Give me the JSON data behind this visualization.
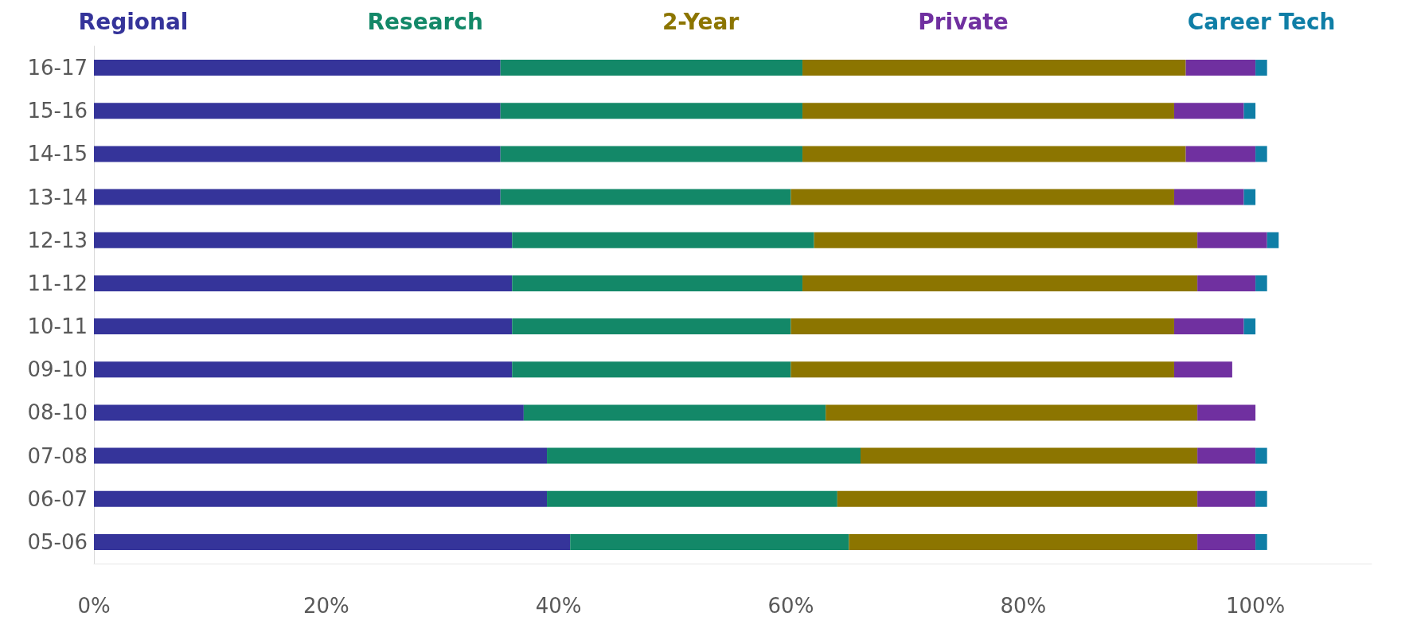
{
  "chart_data": {
    "type": "bar",
    "orientation": "horizontal",
    "stacked": true,
    "categories": [
      "16-17",
      "15-16",
      "14-15",
      "13-14",
      "12-13",
      "11-12",
      "10-11",
      "09-10",
      "08-10",
      "07-08",
      "06-07",
      "05-06"
    ],
    "series": [
      {
        "name": "Regional",
        "color": "#35349a",
        "values": [
          35,
          35,
          35,
          35,
          36,
          36,
          36,
          36,
          37,
          39,
          39,
          41
        ]
      },
      {
        "name": "Research",
        "color": "#138868",
        "values": [
          26,
          26,
          26,
          25,
          26,
          25,
          24,
          24,
          26,
          27,
          25,
          24
        ]
      },
      {
        "name": "2-Year",
        "color": "#8c7500",
        "values": [
          33,
          32,
          33,
          33,
          33,
          34,
          33,
          33,
          32,
          29,
          31,
          30
        ]
      },
      {
        "name": "Private",
        "color": "#7030a0",
        "values": [
          6,
          6,
          6,
          6,
          6,
          5,
          6,
          5,
          5,
          5,
          5,
          5
        ]
      },
      {
        "name": "Career Tech",
        "color": "#0f7ea6",
        "values": [
          1,
          1,
          1,
          1,
          1,
          1,
          1,
          null,
          null,
          1,
          1,
          1
        ]
      }
    ],
    "xlim": [
      0,
      110
    ],
    "xticks": [
      {
        "value": 0,
        "label": "0%"
      },
      {
        "value": 20,
        "label": "20%"
      },
      {
        "value": 40,
        "label": "40%"
      },
      {
        "value": 60,
        "label": "60%"
      },
      {
        "value": 80,
        "label": "80%"
      },
      {
        "value": 100,
        "label": "100%"
      }
    ],
    "grid": false,
    "legend": "top"
  }
}
